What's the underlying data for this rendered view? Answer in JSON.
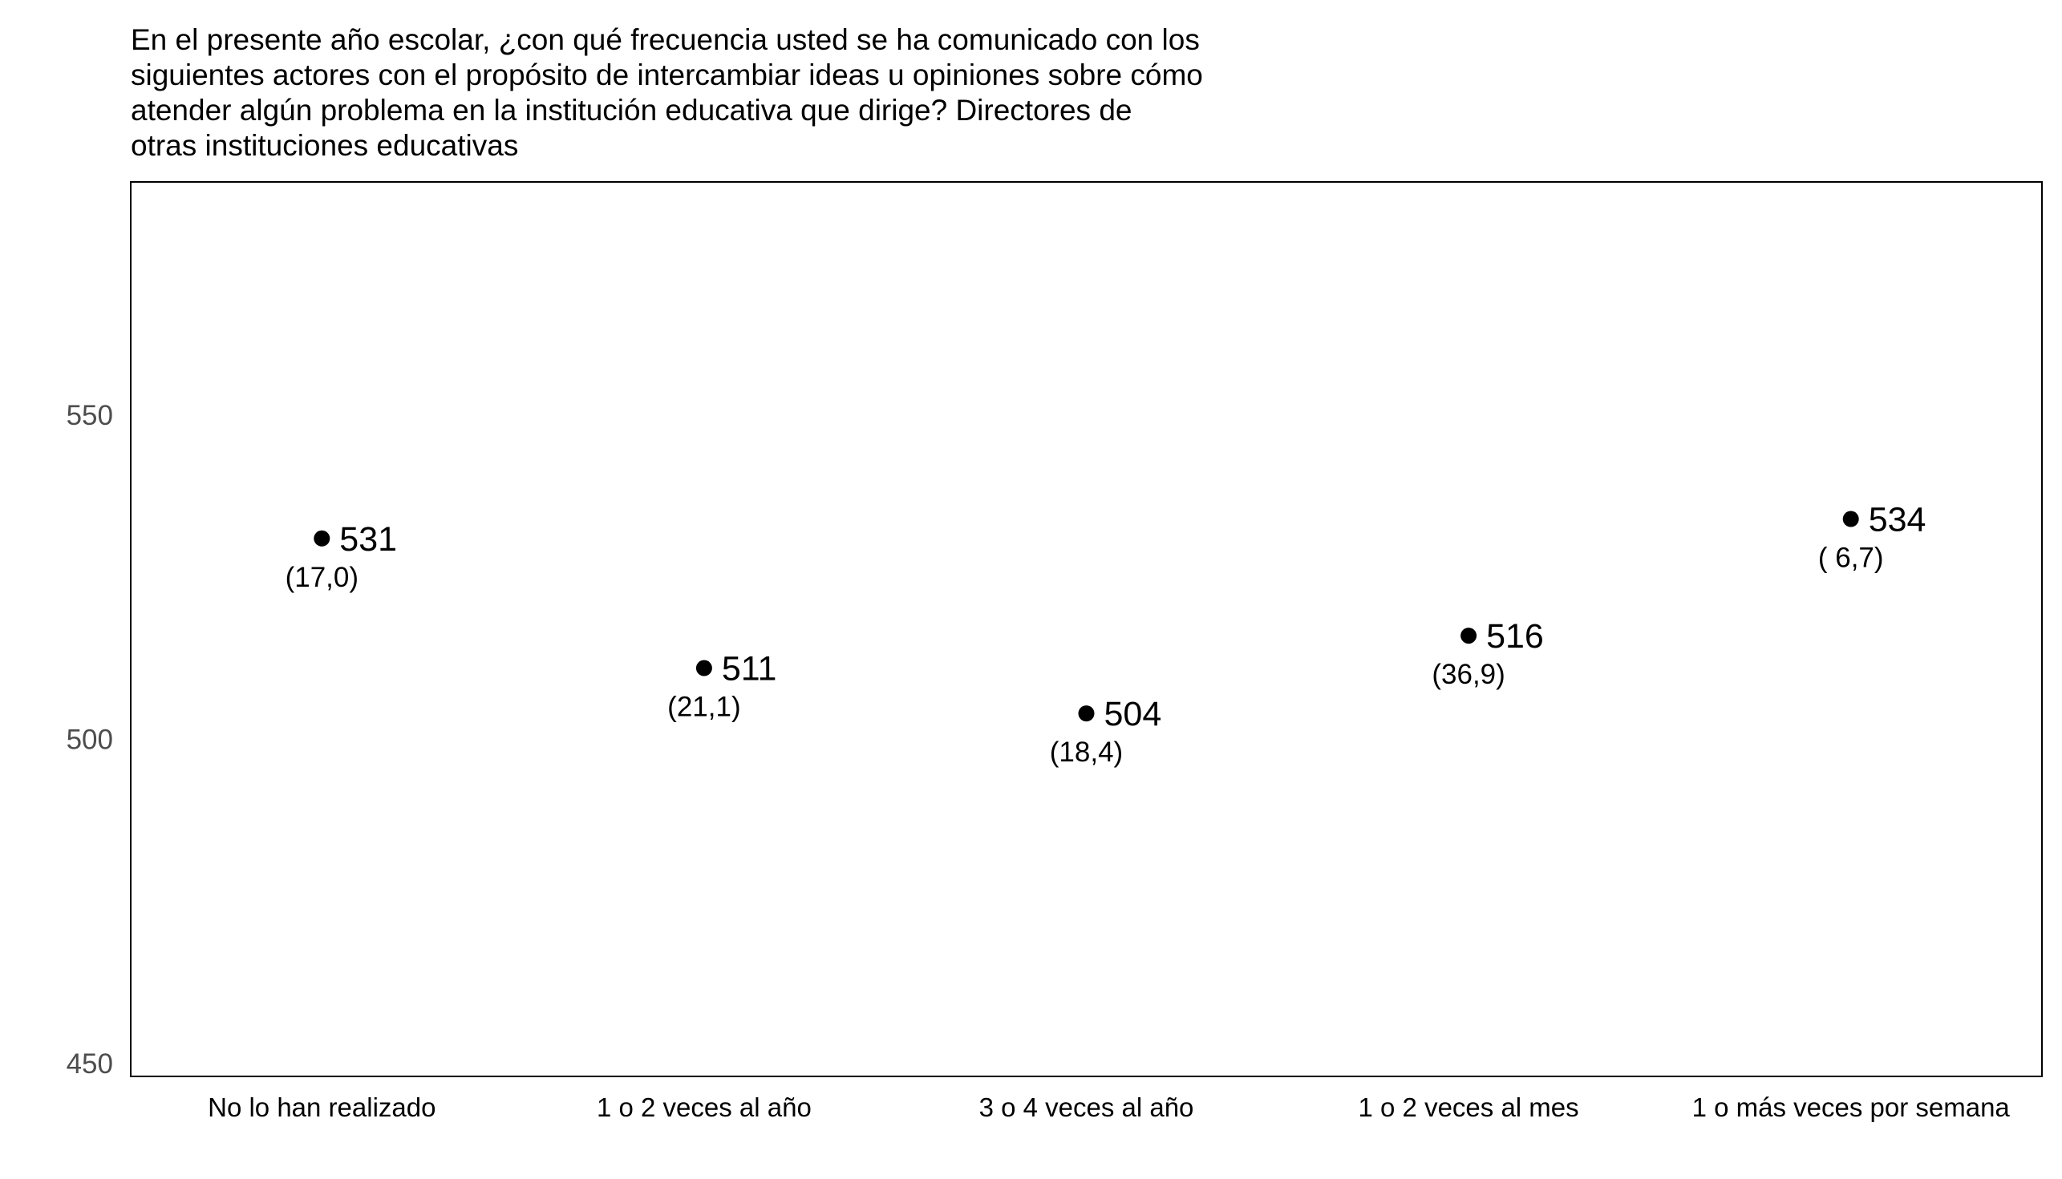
{
  "chart_data": {
    "type": "scatter",
    "title": "En el presente año escolar, ¿con qué frecuencia usted se ha comunicado con los\nsiguientes actores con el propósito de intercambiar ideas u opiniones sobre cómo\natender algún problema en la institución educativa que dirige? Directores de\notras instituciones educativas",
    "categories": [
      "No lo han realizado",
      "1 o 2 veces al año",
      "3 o 4 veces al año",
      "1 o 2 veces al mes",
      "1 o más veces por semana"
    ],
    "values": [
      531,
      511,
      504,
      516,
      534
    ],
    "value_labels": [
      "531",
      "511",
      "504",
      "516",
      "534"
    ],
    "se_labels": [
      "(17,0)",
      "(21,1)",
      "(18,4)",
      "(36,9)",
      "( 6,7)"
    ],
    "yticks": [
      450,
      500,
      550
    ],
    "ylim": [
      448,
      586
    ],
    "grid": false,
    "marker_color": "#000000"
  }
}
